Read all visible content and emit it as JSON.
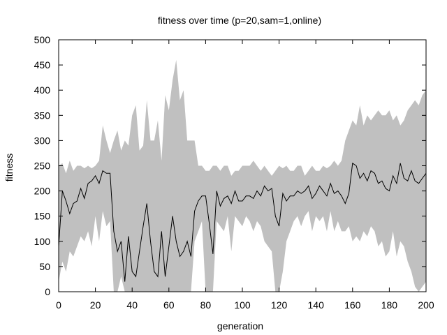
{
  "chart_data": {
    "type": "area",
    "title": "fitness over time (p=20,sam=1,online)",
    "xlabel": "generation",
    "ylabel": "fitness",
    "xlim": [
      0,
      200
    ],
    "ylim": [
      0,
      500
    ],
    "x_ticks": [
      0,
      20,
      40,
      60,
      80,
      100,
      120,
      140,
      160,
      180,
      200
    ],
    "y_ticks": [
      0,
      50,
      100,
      150,
      200,
      250,
      300,
      350,
      400,
      450,
      500
    ],
    "grid": false,
    "legend": "none",
    "colors": {
      "band": "#c0c0c0",
      "line": "#000000",
      "axes": "#000000"
    },
    "series": [
      {
        "style": "line",
        "x": [
          0,
          2,
          4,
          6,
          8,
          10,
          12,
          14,
          16,
          18,
          20,
          22,
          24,
          26,
          28,
          30,
          32,
          34,
          36,
          38,
          40,
          42,
          44,
          46,
          48,
          50,
          52,
          54,
          56,
          58,
          60,
          62,
          64,
          66,
          68,
          70,
          72,
          74,
          76,
          78,
          80,
          82,
          84,
          86,
          88,
          90,
          92,
          94,
          96,
          98,
          100,
          102,
          104,
          106,
          108,
          110,
          112,
          114,
          116,
          118,
          120,
          122,
          124,
          126,
          128,
          130,
          132,
          134,
          136,
          138,
          140,
          142,
          144,
          146,
          148,
          150,
          152,
          154,
          156,
          158,
          160,
          162,
          164,
          166,
          168,
          170,
          172,
          174,
          176,
          178,
          180,
          182,
          184,
          186,
          188,
          190,
          192,
          194,
          196,
          198,
          200
        ],
        "y": [
          90,
          200,
          180,
          155,
          175,
          180,
          205,
          185,
          215,
          220,
          230,
          215,
          240,
          235,
          235,
          120,
          80,
          100,
          20,
          110,
          40,
          30,
          80,
          130,
          175,
          100,
          40,
          30,
          120,
          30,
          90,
          150,
          100,
          70,
          80,
          100,
          70,
          160,
          180,
          190,
          190,
          135,
          75,
          200,
          170,
          185,
          190,
          175,
          200,
          180,
          180,
          190,
          190,
          185,
          200,
          190,
          210,
          200,
          205,
          150,
          130,
          195,
          180,
          190,
          190,
          200,
          195,
          200,
          210,
          185,
          195,
          210,
          200,
          190,
          215,
          195,
          200,
          190,
          175,
          195,
          255,
          250,
          225,
          235,
          220,
          240,
          235,
          215,
          220,
          205,
          200,
          230,
          215,
          255,
          225,
          220,
          240,
          220,
          215,
          225,
          235
        ]
      },
      {
        "style": "band",
        "x": [
          0,
          2,
          4,
          6,
          8,
          10,
          12,
          14,
          16,
          18,
          20,
          22,
          24,
          26,
          28,
          30,
          32,
          34,
          36,
          38,
          40,
          42,
          44,
          46,
          48,
          50,
          52,
          54,
          56,
          58,
          60,
          62,
          64,
          66,
          68,
          70,
          72,
          74,
          76,
          78,
          80,
          82,
          84,
          86,
          88,
          90,
          92,
          94,
          96,
          98,
          100,
          102,
          104,
          106,
          108,
          110,
          112,
          114,
          116,
          118,
          120,
          122,
          124,
          126,
          128,
          130,
          132,
          134,
          136,
          138,
          140,
          142,
          144,
          146,
          148,
          150,
          152,
          154,
          156,
          158,
          160,
          162,
          164,
          166,
          168,
          170,
          172,
          174,
          176,
          178,
          180,
          182,
          184,
          186,
          188,
          190,
          192,
          194,
          196,
          198,
          200
        ],
        "lower": [
          20,
          60,
          40,
          80,
          70,
          90,
          110,
          100,
          120,
          90,
          150,
          100,
          160,
          130,
          140,
          0,
          0,
          30,
          0,
          0,
          0,
          0,
          0,
          0,
          0,
          0,
          0,
          0,
          0,
          0,
          0,
          0,
          0,
          0,
          0,
          0,
          0,
          100,
          120,
          140,
          0,
          0,
          0,
          140,
          130,
          120,
          150,
          80,
          150,
          140,
          130,
          150,
          140,
          120,
          140,
          130,
          100,
          90,
          80,
          0,
          0,
          40,
          100,
          120,
          140,
          150,
          130,
          150,
          160,
          120,
          150,
          140,
          150,
          120,
          160,
          120,
          140,
          120,
          120,
          130,
          100,
          110,
          100,
          120,
          110,
          130,
          120,
          90,
          100,
          70,
          80,
          120,
          70,
          100,
          90,
          60,
          40,
          10,
          0,
          10,
          20
        ],
        "upper": [
          250,
          255,
          235,
          260,
          240,
          250,
          250,
          245,
          250,
          245,
          250,
          260,
          330,
          300,
          275,
          300,
          320,
          280,
          300,
          290,
          350,
          370,
          280,
          290,
          380,
          300,
          300,
          340,
          260,
          390,
          360,
          420,
          460,
          380,
          400,
          300,
          300,
          300,
          250,
          250,
          240,
          240,
          250,
          250,
          240,
          250,
          250,
          230,
          240,
          240,
          250,
          250,
          250,
          260,
          250,
          240,
          250,
          240,
          230,
          240,
          250,
          245,
          250,
          240,
          240,
          250,
          250,
          230,
          240,
          250,
          240,
          240,
          250,
          245,
          250,
          260,
          250,
          260,
          300,
          320,
          340,
          330,
          370,
          330,
          350,
          340,
          350,
          360,
          350,
          350,
          360,
          340,
          350,
          330,
          340,
          360,
          370,
          380,
          370,
          390,
          400
        ]
      }
    ]
  }
}
